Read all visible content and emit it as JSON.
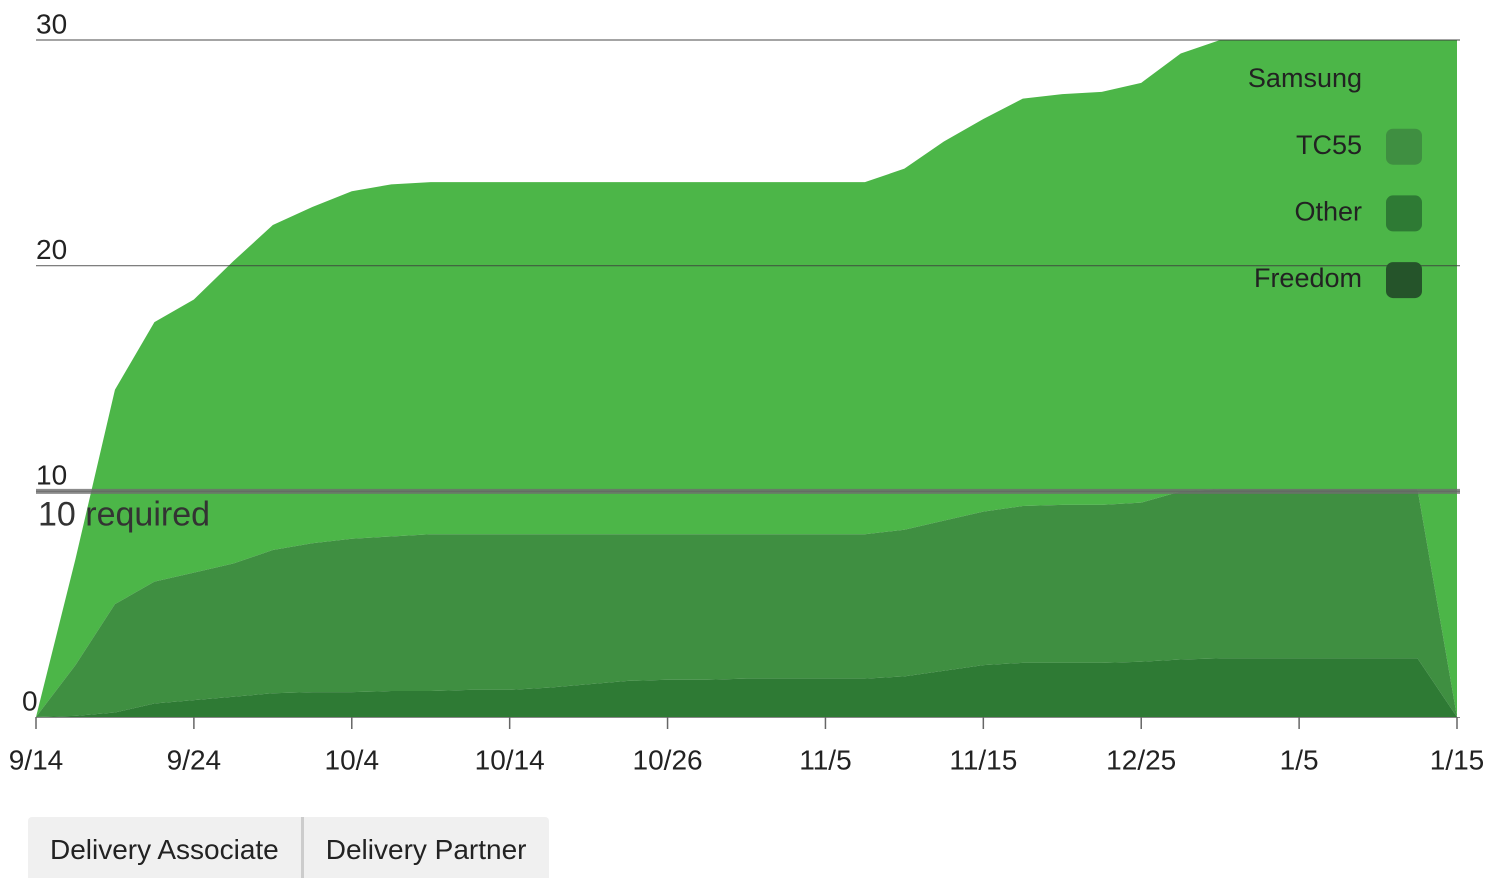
{
  "chart_data": {
    "type": "stacked_area",
    "categories": [
      "9/14",
      null,
      null,
      null,
      "9/24",
      null,
      null,
      null,
      "10/4",
      null,
      null,
      null,
      "10/14",
      null,
      null,
      null,
      "10/26",
      null,
      null,
      null,
      "11/5",
      null,
      null,
      null,
      "11/15",
      null,
      null,
      null,
      "12/25",
      null,
      null,
      null,
      "1/5",
      null,
      null,
      null,
      "1/15"
    ],
    "series": [
      {
        "name": "Freedom",
        "color": "#25542a",
        "values": [
          0,
          0,
          0,
          0,
          0,
          0,
          0,
          0,
          0,
          0,
          0,
          0,
          0,
          0,
          0,
          0,
          0,
          0,
          0,
          0,
          0,
          0,
          0,
          0,
          0,
          0,
          0,
          0,
          0,
          0,
          0,
          0,
          0,
          0,
          0,
          0,
          0
        ]
      },
      {
        "name": "Other",
        "color": "#2e7a34",
        "values": [
          0,
          0.05,
          0.2,
          0.6,
          0.75,
          0.9,
          1.05,
          1.1,
          1.1,
          1.15,
          1.15,
          1.2,
          1.2,
          1.3,
          1.45,
          1.6,
          1.65,
          1.65,
          1.7,
          1.7,
          1.7,
          1.7,
          1.8,
          2.05,
          2.3,
          2.4,
          2.4,
          2.4,
          2.45,
          2.55,
          2.6,
          2.6,
          2.6,
          2.6,
          2.6,
          2.6,
          0
        ]
      },
      {
        "name": "TC55",
        "color": "#3f8f41",
        "values": [
          0,
          2.25,
          4.8,
          5.4,
          5.65,
          5.9,
          6.35,
          6.6,
          6.8,
          6.85,
          6.95,
          6.9,
          6.9,
          6.8,
          6.65,
          6.5,
          6.45,
          6.45,
          6.4,
          6.4,
          6.4,
          6.4,
          6.5,
          6.65,
          6.8,
          6.95,
          7,
          7,
          7.05,
          7.45,
          7.5,
          7.5,
          7.5,
          7.5,
          7.5,
          7.5,
          0
        ]
      },
      {
        "name": "Samsung",
        "color": "#4cb648",
        "values": [
          0,
          4.7,
          9.5,
          11.5,
          12.1,
          13.4,
          14.4,
          14.9,
          15.4,
          15.6,
          15.6,
          15.6,
          15.6,
          15.6,
          15.6,
          15.6,
          15.6,
          15.6,
          15.6,
          15.6,
          15.6,
          15.6,
          16,
          16.8,
          17.4,
          18.05,
          18.2,
          18.3,
          18.6,
          19.4,
          19.9,
          19.9,
          19.9,
          19.9,
          19.9,
          19.9,
          30
        ]
      }
    ],
    "ylim": [
      0,
      30
    ],
    "yticks": [
      0,
      10,
      20,
      30
    ],
    "grid": true,
    "reference_line": {
      "value": 10,
      "label": "10 required"
    },
    "legend": "top-right"
  },
  "buttons": [
    "Delivery Associate",
    "Delivery Partner"
  ]
}
